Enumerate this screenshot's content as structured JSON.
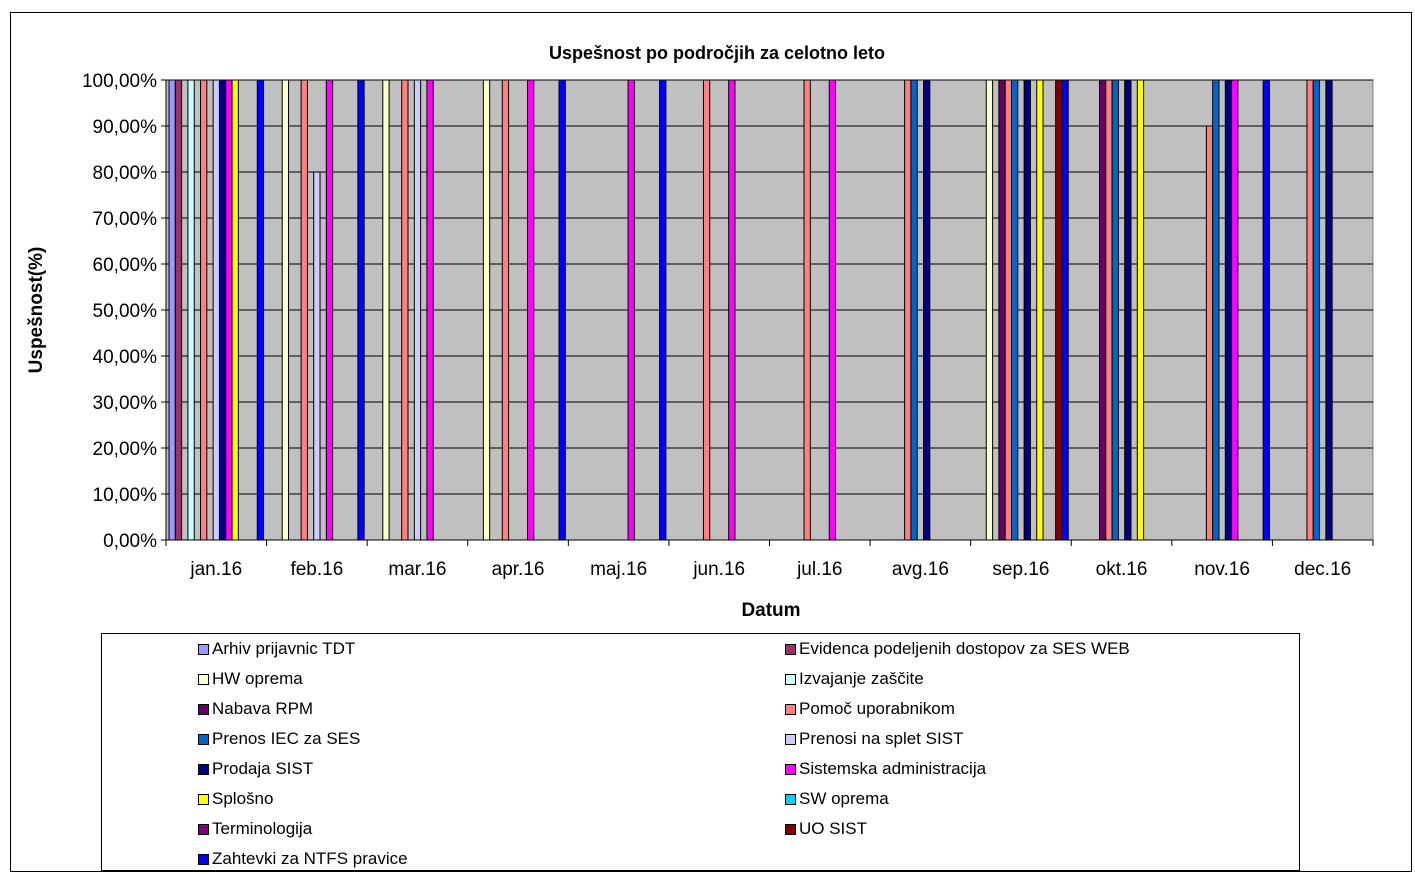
{
  "chart_data": {
    "type": "bar",
    "title": "Uspešnost po področjih za celotno leto",
    "xlabel": "Datum",
    "ylabel": "Uspešnost(%)",
    "ylim": [
      0,
      100
    ],
    "y_ticks": [
      "0,00%",
      "10,00%",
      "20,00%",
      "30,00%",
      "40,00%",
      "50,00%",
      "60,00%",
      "70,00%",
      "80,00%",
      "90,00%",
      "100,00%"
    ],
    "categories": [
      "jan.16",
      "feb.16",
      "mar.16",
      "apr.16",
      "maj.16",
      "jun.16",
      "jul.16",
      "avg.16",
      "sep.16",
      "okt.16",
      "nov.16",
      "dec.16"
    ],
    "plot_background": "#c0c0c0",
    "grid": "horizontal",
    "legend_position": "bottom",
    "series": [
      {
        "name": "Arhiv prijavnic TDT",
        "color": "#9999ff",
        "values": [
          100,
          null,
          null,
          null,
          null,
          null,
          null,
          null,
          null,
          null,
          null,
          null
        ]
      },
      {
        "name": "Evidenca podeljenih dostopov za SES WEB",
        "color": "#993366",
        "values": [
          100,
          null,
          null,
          null,
          null,
          null,
          null,
          null,
          null,
          null,
          null,
          null
        ]
      },
      {
        "name": "HW oprema",
        "color": "#ffffcc",
        "values": [
          null,
          100,
          100,
          100,
          null,
          null,
          null,
          null,
          100,
          null,
          null,
          null
        ]
      },
      {
        "name": "Izvajanje zaščite",
        "color": "#ccffff",
        "values": [
          100,
          null,
          null,
          null,
          null,
          null,
          null,
          null,
          null,
          null,
          null,
          null
        ]
      },
      {
        "name": "Nabava RPM",
        "color": "#660066",
        "values": [
          null,
          null,
          null,
          null,
          null,
          null,
          null,
          null,
          100,
          100,
          null,
          null
        ]
      },
      {
        "name": "Pomoč uporabnikom",
        "color": "#ff8080",
        "values": [
          100,
          100,
          100,
          100,
          null,
          100,
          100,
          100,
          100,
          100,
          90,
          100
        ]
      },
      {
        "name": "Prenos IEC za SES",
        "color": "#0066cc",
        "values": [
          null,
          null,
          null,
          null,
          null,
          null,
          null,
          100,
          100,
          100,
          100,
          100
        ]
      },
      {
        "name": "Prenosi na splet SIST",
        "color": "#ccccff",
        "values": [
          100,
          80,
          100,
          null,
          null,
          null,
          null,
          null,
          null,
          null,
          null,
          null
        ]
      },
      {
        "name": "Prodaja SIST",
        "color": "#000080",
        "values": [
          100,
          null,
          null,
          null,
          null,
          null,
          null,
          100,
          100,
          100,
          100,
          100
        ]
      },
      {
        "name": "Sistemska administracija",
        "color": "#ff00ff",
        "values": [
          100,
          100,
          100,
          100,
          100,
          100,
          100,
          null,
          null,
          null,
          100,
          null
        ]
      },
      {
        "name": "Splošno",
        "color": "#ffff00",
        "values": [
          100,
          null,
          null,
          null,
          null,
          null,
          null,
          null,
          100,
          100,
          null,
          null
        ]
      },
      {
        "name": "SW oprema",
        "color": "#00ccff",
        "values": [
          null,
          null,
          null,
          null,
          null,
          null,
          null,
          null,
          null,
          null,
          null,
          null
        ]
      },
      {
        "name": "Terminologija",
        "color": "#800080",
        "values": [
          null,
          null,
          null,
          null,
          null,
          null,
          null,
          null,
          null,
          null,
          null,
          null
        ]
      },
      {
        "name": "UO SIST",
        "color": "#800000",
        "values": [
          null,
          null,
          null,
          null,
          null,
          null,
          null,
          null,
          100,
          null,
          null,
          null
        ]
      },
      {
        "name": "Zahtevki za NTFS pravice",
        "color": "#0000ff",
        "values": [
          100,
          100,
          null,
          100,
          100,
          null,
          null,
          null,
          100,
          null,
          100,
          null
        ]
      }
    ]
  }
}
